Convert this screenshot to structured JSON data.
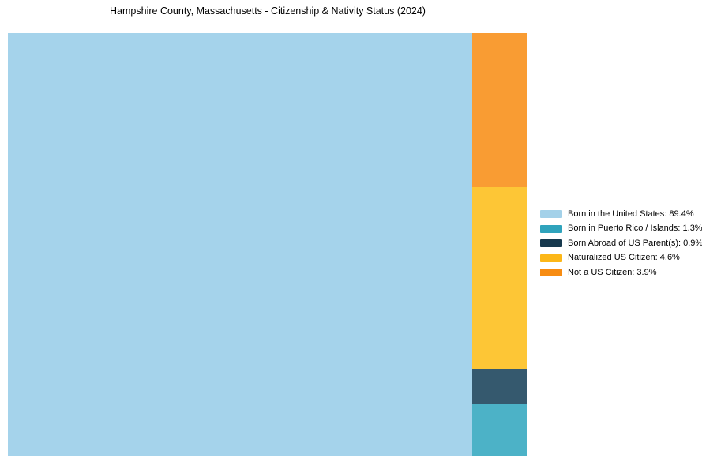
{
  "chart_data": {
    "type": "treemap",
    "title": "Hampshire County, Massachusetts - Citizenship & Nativity Status (2024)",
    "categories": [
      "Born in the United States",
      "Born in Puerto Rico / Islands",
      "Born Abroad of US Parent(s)",
      "Naturalized US Citizen",
      "Not a US Citizen"
    ],
    "values": [
      89.4,
      1.3,
      0.9,
      4.6,
      3.9
    ],
    "series": [
      {
        "name": "Born in the United States",
        "value": 89.4,
        "legend_color": "#a3d1e9",
        "fill": "#a5d3eb"
      },
      {
        "name": "Born in Puerto Rico / Islands",
        "value": 1.3,
        "legend_color": "#2fa3bc",
        "fill": "#4cb2c7"
      },
      {
        "name": "Born Abroad of US Parent(s)",
        "value": 0.9,
        "legend_color": "#17394e",
        "fill": "#35596e"
      },
      {
        "name": "Naturalized US Citizen",
        "value": 4.6,
        "legend_color": "#fcb718",
        "fill": "#fdc636"
      },
      {
        "name": "Not a US Citizen",
        "value": 3.9,
        "legend_color": "#f78c12",
        "fill": "#f99c33"
      }
    ],
    "legend": [
      {
        "label": "Born in the United States: 89.4%",
        "color": "#a3d1e9"
      },
      {
        "label": "Born in Puerto Rico / Islands: 1.3%",
        "color": "#2fa3bc"
      },
      {
        "label": "Born Abroad of US Parent(s): 0.9%",
        "color": "#17394e"
      },
      {
        "label": "Naturalized US Citizen: 4.6%",
        "color": "#fcb718"
      },
      {
        "label": "Not a US Citizen: 3.9%",
        "color": "#f78c12"
      }
    ],
    "legend_position": "right",
    "layout": {
      "first_cell": "full-height-left",
      "right_column_top_to_bottom": [
        "Not a US Citizen",
        "Naturalized US Citizen",
        "Born Abroad of US Parent(s)",
        "Born in Puerto Rico / Islands"
      ]
    },
    "background": "#ffffff"
  }
}
